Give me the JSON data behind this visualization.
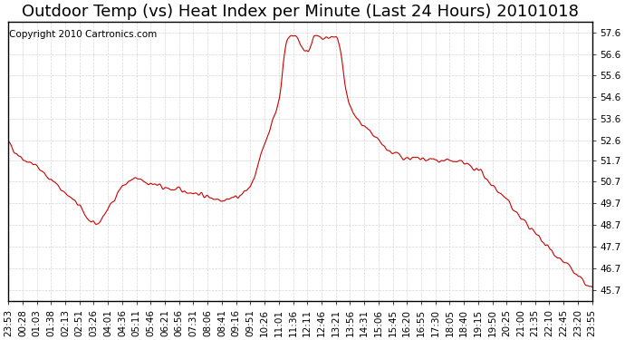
{
  "title": "Outdoor Temp (vs) Heat Index per Minute (Last 24 Hours) 20101018",
  "copyright_text": "Copyright 2010 Cartronics.com",
  "line_color": "#cc0000",
  "background_color": "#ffffff",
  "grid_color": "#cccccc",
  "ytick_labels": [
    "45.7",
    "46.7",
    "47.7",
    "48.7",
    "49.7",
    "50.7",
    "51.7",
    "52.6",
    "53.6",
    "54.6",
    "55.6",
    "56.6",
    "57.6"
  ],
  "ytick_values": [
    45.7,
    46.7,
    47.7,
    48.7,
    49.7,
    50.7,
    51.7,
    52.6,
    53.6,
    54.6,
    55.6,
    56.6,
    57.6
  ],
  "ylim": [
    45.2,
    58.1
  ],
  "xtick_labels": [
    "23:53",
    "00:28",
    "01:03",
    "01:38",
    "02:13",
    "02:51",
    "03:26",
    "04:01",
    "04:36",
    "05:11",
    "05:46",
    "06:21",
    "06:56",
    "07:31",
    "08:06",
    "08:41",
    "09:16",
    "09:51",
    "10:26",
    "11:01",
    "11:36",
    "12:11",
    "12:46",
    "13:21",
    "13:56",
    "14:31",
    "15:06",
    "15:45",
    "16:20",
    "16:55",
    "17:30",
    "18:05",
    "18:40",
    "19:15",
    "19:50",
    "20:25",
    "21:00",
    "21:35",
    "22:10",
    "22:45",
    "23:20",
    "23:55"
  ],
  "title_fontsize": 13,
  "copyright_fontsize": 7.5,
  "tick_fontsize": 7.5
}
